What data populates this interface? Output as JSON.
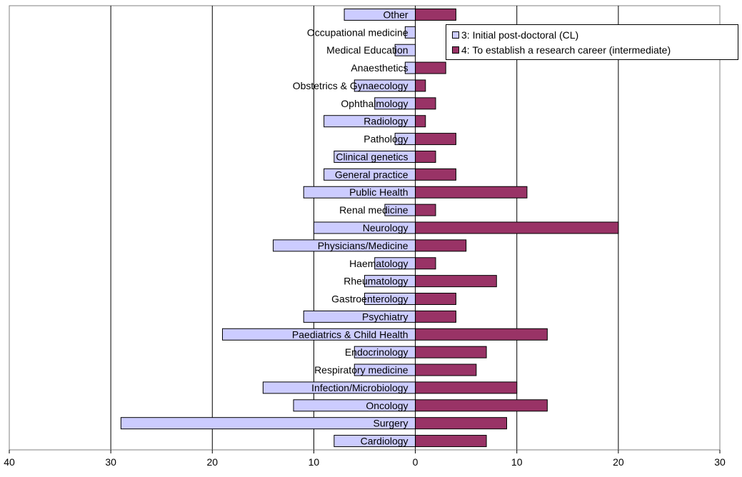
{
  "chart_data": {
    "type": "bar",
    "orientation": "horizontal-diverging",
    "categories": [
      "Other",
      "Occupational medicine",
      "Medical Education",
      "Anaesthetics",
      "Obstetrics & Gynaecology",
      "Ophthalmology",
      "Radiology",
      "Pathology",
      "Clinical genetics",
      "General practice",
      "Public Health",
      "Renal medicine",
      "Neurology",
      "Physicians/Medicine",
      "Haematology",
      "Rheumatology",
      "Gastroenterology",
      "Psychiatry",
      "Paediatrics & Child Health",
      "Endocrinology",
      "Respiratory medicine",
      "Infection/Microbiology",
      "Oncology",
      "Surgery",
      "Cardiology"
    ],
    "series": [
      {
        "name": "3: Initial post-doctoral (CL)",
        "direction": "left",
        "color": "#ccccff",
        "values": [
          7,
          1,
          2,
          1,
          6,
          4,
          9,
          2,
          8,
          9,
          11,
          3,
          10,
          14,
          4,
          5,
          5,
          11,
          19,
          6,
          6,
          15,
          12,
          29,
          8
        ]
      },
      {
        "name": "4: To establish a research career (intermediate)",
        "direction": "right",
        "color": "#993366",
        "values": [
          4,
          0,
          0,
          3,
          1,
          2,
          1,
          4,
          2,
          4,
          11,
          2,
          20,
          5,
          2,
          8,
          4,
          4,
          13,
          7,
          6,
          10,
          13,
          9,
          7
        ]
      }
    ],
    "xlim": [
      -40,
      30
    ],
    "xticks": [
      -40,
      -30,
      -20,
      -10,
      0,
      10,
      20,
      30
    ],
    "xtick_labels": [
      "40",
      "30",
      "20",
      "10",
      "0",
      "10",
      "20",
      "30"
    ],
    "title": "",
    "xlabel": "",
    "ylabel": "",
    "grid": "vertical",
    "legend_position": "top-right"
  }
}
